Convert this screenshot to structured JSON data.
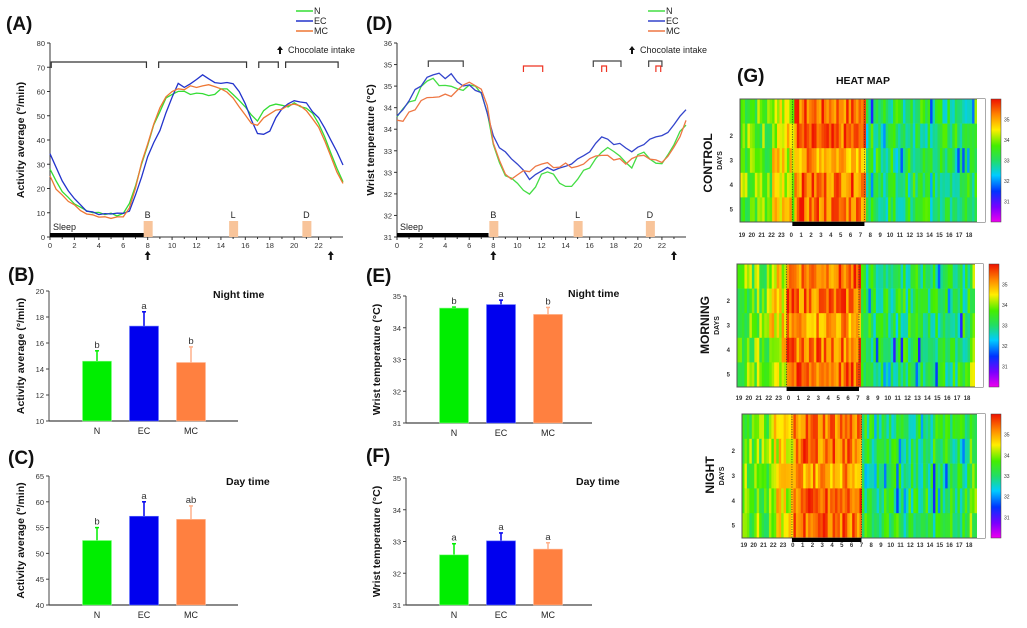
{
  "chart_data": [
    {
      "id": "A",
      "panel_label": "(A)",
      "type": "line",
      "title": "",
      "xlabel": "Time (h)",
      "ylabel": "Activity average (°/min)",
      "xlim": [
        0,
        24
      ],
      "ylim": [
        0,
        80
      ],
      "xticks": [
        "0",
        "2",
        "4",
        "6",
        "8",
        "10",
        "12",
        "14",
        "16",
        "18",
        "20",
        "22"
      ],
      "yticks": [
        "0",
        "10",
        "20",
        "30",
        "40",
        "50",
        "60",
        "70",
        "80"
      ],
      "legend": [
        "N",
        "EC",
        "MC"
      ],
      "legend_note": "Chocolate intake",
      "legend_position": "top-right",
      "annotations": {
        "sleep_label": "Sleep",
        "sleep_range": [
          0,
          7.75
        ],
        "meals": [
          {
            "label": "B",
            "at": 8
          },
          {
            "label": "L",
            "at": 15
          },
          {
            "label": "D",
            "at": 21
          }
        ],
        "intake_arrows_at": [
          8,
          23
        ],
        "brackets": [
          [
            0.1,
            7.9
          ],
          [
            8.9,
            16.1
          ],
          [
            17.1,
            18.7
          ],
          [
            19.3,
            23.6
          ]
        ]
      },
      "x": [
        0,
        0.5,
        1,
        1.5,
        2,
        2.5,
        3,
        3.5,
        4,
        4.5,
        5,
        5.5,
        6,
        6.5,
        7,
        7.5,
        8,
        8.5,
        9,
        9.5,
        10,
        10.5,
        11,
        11.5,
        12,
        12.5,
        13,
        13.5,
        14,
        14.5,
        15,
        15.5,
        16,
        16.5,
        17,
        17.5,
        18,
        18.5,
        19,
        19.5,
        20,
        20.5,
        21,
        21.5,
        22,
        22.5,
        23,
        23.5,
        24
      ],
      "series": [
        {
          "name": "N",
          "color": "#33dd33",
          "values": [
            28,
            23,
            19,
            16,
            14,
            12,
            11,
            10,
            10,
            9.5,
            9.5,
            9,
            9.5,
            14,
            21,
            30,
            38,
            46,
            52,
            57,
            59,
            60,
            60,
            59,
            59,
            59.5,
            58,
            59,
            61,
            61,
            59,
            56,
            54,
            50,
            48,
            52,
            54,
            55,
            54,
            54,
            55,
            54,
            53,
            51,
            47,
            41,
            35,
            28,
            23
          ]
        },
        {
          "name": "EC",
          "color": "#2233cc",
          "values": [
            34,
            29,
            23,
            19,
            16,
            13,
            11,
            10,
            9.5,
            9.5,
            9.5,
            10,
            9.5,
            11,
            17,
            25,
            33,
            39,
            44,
            51,
            58,
            63,
            62,
            63,
            65,
            67,
            65,
            64,
            63,
            64,
            63,
            60,
            55,
            48,
            43,
            42,
            44,
            49,
            53,
            55,
            56,
            56,
            55,
            52,
            49,
            45,
            40,
            35,
            30
          ]
        },
        {
          "name": "MC",
          "color": "#ee7733",
          "values": [
            25,
            20,
            17,
            15,
            13,
            11,
            9.5,
            9,
            8.5,
            8,
            8,
            8,
            8.5,
            12,
            20,
            31,
            38,
            47,
            53,
            58,
            60,
            61,
            61,
            62,
            62,
            62,
            63,
            62,
            61,
            60,
            57,
            54,
            50,
            47,
            46,
            49,
            51,
            52,
            53,
            54,
            55,
            54,
            52,
            49,
            45,
            40,
            33,
            27,
            22
          ]
        }
      ]
    },
    {
      "id": "B",
      "panel_label": "(B)",
      "type": "bar",
      "title": "Night time",
      "xlabel": "",
      "ylabel": "Activity average (°/min)",
      "categories": [
        "N",
        "EC",
        "MC"
      ],
      "values": [
        14.6,
        17.3,
        14.5
      ],
      "errors": [
        0.8,
        1.1,
        1.2
      ],
      "significance": [
        "b",
        "a",
        "b"
      ],
      "colors": [
        "#00ee00",
        "#0000ee",
        "#ff8040"
      ],
      "ylim": [
        10,
        20
      ],
      "yticks": [
        "10",
        "12",
        "14",
        "16",
        "18",
        "20"
      ]
    },
    {
      "id": "C",
      "panel_label": "(C)",
      "type": "bar",
      "title": "Day time",
      "xlabel": "",
      "ylabel": "Activity average (°/min)",
      "categories": [
        "N",
        "EC",
        "MC"
      ],
      "values": [
        52.5,
        57.2,
        56.6
      ],
      "errors": [
        2.5,
        2.8,
        2.6
      ],
      "significance": [
        "b",
        "a",
        "ab"
      ],
      "colors": [
        "#00ee00",
        "#0000ee",
        "#ff8040"
      ],
      "ylim": [
        40,
        65
      ],
      "yticks": [
        "40",
        "45",
        "50",
        "55",
        "60",
        "65"
      ]
    },
    {
      "id": "D",
      "panel_label": "(D)",
      "type": "line",
      "title": "",
      "xlabel": "",
      "ylabel": "Wrist temperature (°C)",
      "xlim": [
        0,
        24
      ],
      "ylim": [
        31,
        36
      ],
      "xticks": [
        "0",
        "2",
        "4",
        "6",
        "8",
        "10",
        "12",
        "14",
        "16",
        "18",
        "20",
        "22"
      ],
      "yticks": [
        "31",
        "32",
        "32",
        "33",
        "33",
        "34",
        "34",
        "35",
        "35",
        "36"
      ],
      "legend": [
        "N",
        "EC",
        "MC"
      ],
      "legend_note": "Chocolate intake",
      "legend_position": "top-right",
      "annotations": {
        "sleep_label": "Sleep",
        "sleep_range": [
          0,
          7.6
        ],
        "meals": [
          {
            "label": "B",
            "at": 8
          },
          {
            "label": "L",
            "at": 15
          },
          {
            "label": "D",
            "at": 21
          }
        ],
        "intake_arrows_at": [
          8,
          23
        ],
        "brackets_black": [
          [
            2.6,
            5.5
          ],
          [
            16.3,
            18.6
          ],
          [
            20.9,
            22
          ]
        ],
        "brackets_red": [
          [
            10.5,
            12.1
          ],
          [
            17,
            17.4
          ],
          [
            21.5,
            21.9
          ]
        ]
      },
      "x": [
        0,
        0.5,
        1,
        1.5,
        2,
        2.5,
        3,
        3.5,
        4,
        4.5,
        5,
        5.5,
        6,
        6.5,
        7,
        7.5,
        8,
        8.5,
        9,
        9.5,
        10,
        10.5,
        11,
        11.5,
        12,
        12.5,
        13,
        13.5,
        14,
        14.5,
        15,
        15.5,
        16,
        16.5,
        17,
        17.5,
        18,
        18.5,
        19,
        19.5,
        20,
        20.5,
        21,
        21.5,
        22,
        22.5,
        23,
        23.5,
        24
      ],
      "series": [
        {
          "name": "N",
          "color": "#44dd44",
          "values": [
            34.1,
            34.3,
            34.5,
            34.5,
            34.9,
            35.0,
            35.1,
            34.9,
            34.9,
            34.9,
            34.8,
            34.8,
            34.9,
            34.9,
            34.7,
            34.2,
            33.4,
            32.9,
            32.6,
            32.5,
            32.4,
            32.2,
            32.1,
            32.3,
            32.6,
            32.7,
            32.6,
            32.4,
            32.3,
            32.3,
            32.5,
            32.7,
            32.8,
            33.0,
            33.2,
            33.3,
            33.2,
            33.1,
            32.9,
            32.8,
            33.1,
            33.2,
            33.0,
            32.9,
            32.9,
            33.1,
            33.4,
            33.7,
            33.9
          ]
        },
        {
          "name": "EC",
          "color": "#3344cc",
          "values": [
            34.1,
            34.3,
            34.5,
            34.8,
            34.9,
            35.1,
            35.2,
            35.2,
            35.1,
            35.2,
            35.0,
            34.9,
            34.9,
            34.8,
            34.7,
            34.2,
            33.6,
            33.3,
            33.2,
            33.0,
            32.9,
            32.7,
            32.5,
            32.6,
            32.7,
            32.8,
            32.7,
            32.8,
            32.8,
            32.9,
            33.0,
            33.1,
            33.2,
            33.4,
            33.6,
            33.5,
            33.4,
            33.4,
            33.3,
            33.2,
            33.3,
            33.4,
            33.5,
            33.6,
            33.6,
            33.7,
            33.9,
            34.1,
            34.3
          ]
        },
        {
          "name": "MC",
          "color": "#ee7744",
          "values": [
            34.0,
            34.0,
            34.2,
            34.3,
            34.5,
            34.6,
            34.6,
            34.6,
            34.7,
            34.6,
            34.8,
            34.9,
            35.0,
            34.9,
            34.8,
            34.4,
            33.4,
            33.0,
            32.6,
            32.5,
            32.6,
            32.7,
            32.7,
            32.8,
            32.9,
            32.9,
            32.8,
            32.8,
            32.9,
            32.8,
            32.8,
            32.9,
            33.0,
            33.1,
            33.1,
            33.1,
            33.0,
            33.0,
            32.9,
            33.0,
            33.1,
            33.1,
            33.0,
            33.0,
            32.9,
            33.1,
            33.3,
            33.6,
            34.0
          ]
        }
      ]
    },
    {
      "id": "E",
      "panel_label": "(E)",
      "type": "bar",
      "title": "Night time",
      "xlabel": "",
      "ylabel": "Wrist temperature (°C)",
      "categories": [
        "N",
        "EC",
        "MC"
      ],
      "values": [
        34.62,
        34.73,
        34.42
      ],
      "errors": [
        0.03,
        0.14,
        0.22
      ],
      "significance": [
        "b",
        "a",
        "b"
      ],
      "colors": [
        "#00ee00",
        "#0000ee",
        "#ff8040"
      ],
      "ylim": [
        31,
        35
      ],
      "yticks": [
        "31",
        "32",
        "33",
        "34",
        "35"
      ]
    },
    {
      "id": "F",
      "panel_label": "(F)",
      "type": "bar",
      "title": "Day time",
      "xlabel": "",
      "ylabel": "Wrist temperature (°C)",
      "categories": [
        "N",
        "EC",
        "MC"
      ],
      "values": [
        32.58,
        33.02,
        32.76
      ],
      "errors": [
        0.35,
        0.25,
        0.2
      ],
      "significance": [
        "a",
        "a",
        "a"
      ],
      "colors": [
        "#00ee00",
        "#0000ee",
        "#ff8040"
      ],
      "ylim": [
        31,
        35
      ],
      "yticks": [
        "31",
        "32",
        "33",
        "34",
        "35"
      ]
    },
    {
      "id": "G",
      "panel_label": "(G)",
      "type": "heatmap",
      "title": "HEAT MAP",
      "ylabel": "DAYS",
      "xticks": [
        "19",
        "20",
        "21",
        "22",
        "23",
        "0",
        "1",
        "2",
        "3",
        "4",
        "5",
        "6",
        "7",
        "8",
        "9",
        "10",
        "11",
        "12",
        "13",
        "14",
        "15",
        "16",
        "17",
        "18"
      ],
      "yticks": [
        "",
        "2",
        "3",
        "4",
        "5"
      ],
      "colorbar_ticks": [
        "31",
        "32",
        "33",
        "34",
        "35"
      ],
      "groups": [
        {
          "name": "CONTROL",
          "night_marker": "0-7.5"
        },
        {
          "name": "MORNING",
          "night_marker": "0-7.3"
        },
        {
          "name": "NIGHT",
          "night_marker": "0-7.1"
        }
      ]
    }
  ]
}
